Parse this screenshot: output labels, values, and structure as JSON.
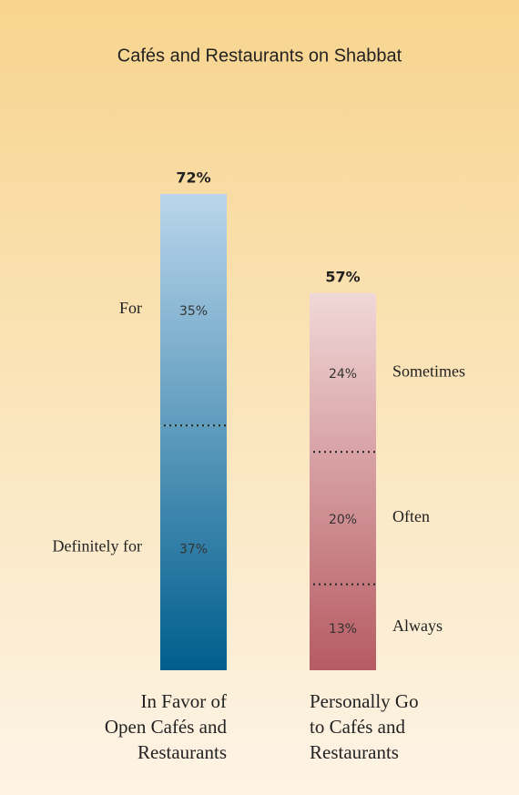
{
  "chart_data": {
    "type": "stacked-bar",
    "title": "Cafés and Restaurants on Shabbat",
    "bars": [
      {
        "category": "In Favor of\nOpen Cafés and\nRestaurants",
        "total": 72,
        "total_label": "72%",
        "color_top": "#bad6ec",
        "color_bottom": "#005e8d",
        "name_side": "left",
        "segment_names": [
          "Definitely for",
          "For"
        ],
        "values": [
          37,
          35
        ],
        "value_labels": [
          "37%",
          "35%"
        ]
      },
      {
        "category": "Personally Go\nto Cafés and\nRestaurants",
        "total": 57,
        "total_label": "57%",
        "color_top": "#f1d8d8",
        "color_bottom": "#b65b62",
        "name_side": "right",
        "segment_names": [
          "Always",
          "Often",
          "Sometimes"
        ],
        "values": [
          13,
          20,
          24
        ],
        "value_labels": [
          "13%",
          "20%",
          "24%"
        ]
      }
    ]
  }
}
